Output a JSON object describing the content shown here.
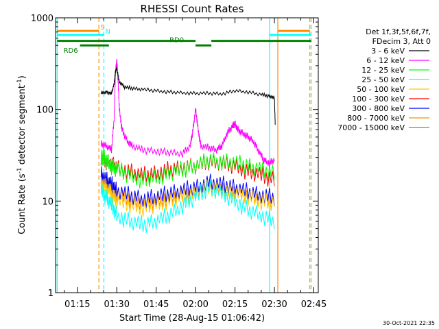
{
  "chart_data": {
    "type": "line",
    "title": "RHESSI Count Rates",
    "xlabel": "Start Time (28-Aug-15 01:06:42)",
    "ylabel_pre": "Count Rate (s",
    "ylabel_sup1": "-1",
    "ylabel_mid": " detector segment",
    "ylabel_sup2": "-1",
    "ylabel_post": ")",
    "x_scale": "time",
    "x_range_min": [
      66.7,
      166.7
    ],
    "y_scale": "log",
    "ylim": [
      1,
      1000
    ],
    "y_ticks": [
      {
        "v": 1,
        "label": "1"
      },
      {
        "v": 10,
        "label": "10"
      },
      {
        "v": 100,
        "label": "100"
      },
      {
        "v": 1000,
        "label": "1000"
      }
    ],
    "x_ticks": [
      {
        "t": 75,
        "label": "01:15"
      },
      {
        "t": 90,
        "label": "01:30"
      },
      {
        "t": 105,
        "label": "01:45"
      },
      {
        "t": 120,
        "label": "02:00"
      },
      {
        "t": 135,
        "label": "02:15"
      },
      {
        "t": 150,
        "label": "02:30"
      },
      {
        "t": 165,
        "label": "02:45"
      }
    ],
    "legend_title": [
      "Det 1f,3f,5f,6f,7f,",
      "FDecim 3, Att 0"
    ],
    "legend_position": "right",
    "series": [
      {
        "name": "3 - 6 keV",
        "color": "#000000",
        "t": [
          84,
          86,
          88,
          89,
          89.5,
          90,
          91,
          93,
          96,
          100,
          105,
          110,
          115,
          120,
          125,
          130,
          135,
          140,
          145,
          148,
          150,
          150.3
        ],
        "y": [
          150,
          155,
          150,
          190,
          260,
          280,
          200,
          175,
          170,
          165,
          160,
          155,
          152,
          150,
          150,
          148,
          160,
          155,
          145,
          140,
          135,
          70
        ]
      },
      {
        "name": "6 - 12 keV",
        "color": "#ff00ff",
        "t": [
          84,
          86,
          88,
          89,
          89.5,
          90,
          90.5,
          91,
          92,
          94,
          96,
          100,
          105,
          110,
          115,
          118,
          119,
          120,
          121,
          122,
          125,
          128,
          130,
          132,
          134,
          135,
          136,
          138,
          140,
          142,
          144,
          146,
          148,
          150
        ],
        "y": [
          42,
          40,
          36,
          80,
          250,
          350,
          200,
          100,
          60,
          45,
          40,
          36,
          35,
          34,
          33,
          40,
          60,
          100,
          60,
          40,
          38,
          36,
          40,
          55,
          65,
          70,
          60,
          55,
          50,
          45,
          35,
          28,
          26,
          28
        ]
      },
      {
        "name": "12 - 25 keV",
        "color": "#00ff00",
        "t": [
          84,
          86,
          88,
          90,
          95,
          100,
          105,
          110,
          115,
          120,
          125,
          130,
          135,
          140,
          145,
          150
        ],
        "y": [
          32,
          28,
          24,
          22,
          19,
          17,
          18,
          20,
          22,
          24,
          28,
          27,
          26,
          24,
          22,
          20
        ]
      },
      {
        "name": "25 - 50 keV",
        "color": "#00ffff",
        "t": [
          84,
          86,
          88,
          90,
          95,
          100,
          105,
          110,
          115,
          120,
          125,
          130,
          135,
          140,
          145,
          150
        ],
        "y": [
          13,
          11,
          9,
          7,
          6,
          5.5,
          6,
          7,
          9,
          11,
          14,
          12,
          10,
          8,
          7,
          6
        ]
      },
      {
        "name": "50 - 100 keV",
        "color": "#ffc800",
        "t": [
          84,
          86,
          88,
          90,
          95,
          100,
          105,
          110,
          115,
          120,
          125,
          130,
          135,
          140,
          145,
          150
        ],
        "y": [
          16,
          14,
          12,
          10,
          9,
          8.5,
          9,
          10,
          11,
          12,
          14,
          13,
          12,
          11,
          10,
          9.5
        ]
      },
      {
        "name": "100 - 300 keV",
        "color": "#ff0000",
        "t": [
          84,
          86,
          88,
          90,
          95,
          100,
          105,
          110,
          115,
          120,
          125,
          130,
          135,
          140,
          145,
          150
        ],
        "y": [
          30,
          27,
          25,
          23,
          21,
          19,
          20,
          22,
          23,
          24,
          27,
          26,
          24,
          21,
          19,
          17
        ]
      },
      {
        "name": "300 - 800 keV",
        "color": "#0000ff",
        "t": [
          84,
          86,
          88,
          90,
          95,
          100,
          105,
          110,
          115,
          120,
          125,
          130,
          135,
          140,
          145,
          150
        ],
        "y": [
          20,
          17,
          15,
          13,
          11.5,
          10.5,
          11,
          12,
          13,
          14,
          16,
          15,
          14,
          12.5,
          11.5,
          11
        ]
      },
      {
        "name": "800 - 7000 keV",
        "color": "#ff8c00",
        "t": [
          84,
          86,
          88,
          90,
          95,
          100,
          105,
          110,
          115,
          120,
          125,
          130,
          135,
          140,
          145,
          150
        ],
        "y": [
          18,
          16,
          14,
          12,
          10.5,
          9.5,
          10,
          11,
          12,
          13,
          15,
          14,
          13,
          11.5,
          10.5,
          10
        ]
      },
      {
        "name": "7000 - 15000 keV",
        "color": "#a0782d",
        "t": [],
        "y": []
      }
    ],
    "annotations": {
      "vlines": [
        {
          "t": 67.3,
          "color": "#00ffff",
          "dash": false
        },
        {
          "t": 83.2,
          "color": "#ff8c00",
          "dash": true
        },
        {
          "t": 85.1,
          "color": "#00ffff",
          "dash": true
        },
        {
          "t": 148.2,
          "color": "#00ffff",
          "dash": false
        },
        {
          "t": 151.3,
          "color": "#ff8c00",
          "dash": false
        },
        {
          "t": 163.5,
          "color": "#ff8c00",
          "dash": true
        },
        {
          "t": 164.0,
          "color": "#00ffff",
          "dash": true
        }
      ],
      "bars": [
        {
          "label": "S",
          "color": "#ff8c00",
          "t0": 67.3,
          "t1": 83.2,
          "y": 720
        },
        {
          "label": "",
          "color": "#ff8c00",
          "t0": 151.3,
          "t1": 163.5,
          "y": 720
        },
        {
          "label": "N",
          "color": "#00ffff",
          "t0": 67.3,
          "t1": 85.1,
          "y": 650
        },
        {
          "label": "",
          "color": "#00ffff",
          "t0": 148.2,
          "t1": 164,
          "y": 650
        },
        {
          "label": "RD0",
          "color": "#008000",
          "t0": 67.3,
          "t1": 120,
          "y": 560
        },
        {
          "label": "",
          "color": "#008000",
          "t0": 120,
          "t1": 126,
          "y": 500
        },
        {
          "label": "",
          "color": "#008000",
          "t0": 126,
          "t1": 164,
          "y": 560
        },
        {
          "label": "RD6",
          "color": "#008000",
          "t0": 76,
          "t1": 87,
          "y": 500
        }
      ]
    }
  },
  "timestamp": "30-Oct-2021 22:35"
}
